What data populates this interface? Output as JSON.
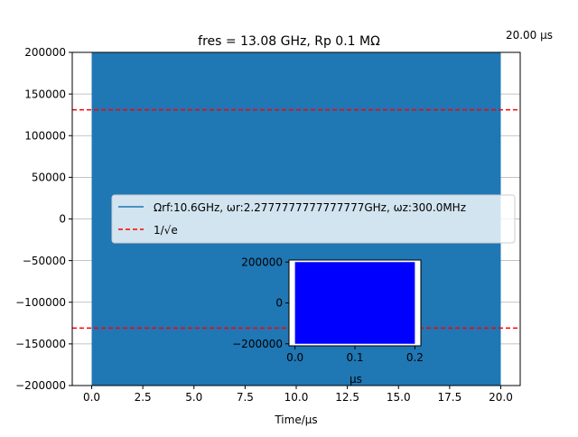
{
  "chart_data": [
    {
      "type": "line",
      "title": "fres = 13.08 GHz, Rp 0.1 MΩ",
      "corner_note": "20.00 μs",
      "xlabel": "Time/μs",
      "ylabel": "",
      "xlim": [
        -0.95,
        20.95
      ],
      "ylim": [
        -200000,
        200000
      ],
      "xticks": [
        0.0,
        2.5,
        5.0,
        7.5,
        10.0,
        12.5,
        15.0,
        17.5,
        20.0
      ],
      "xtick_labels": [
        "0.0",
        "2.5",
        "5.0",
        "7.5",
        "10.0",
        "12.5",
        "15.0",
        "17.5",
        "20.0"
      ],
      "yticks": [
        -200000,
        -150000,
        -100000,
        -50000,
        0,
        50000,
        100000,
        150000,
        200000
      ],
      "ytick_labels": [
        "−200000",
        "−150000",
        "−100000",
        "−50000",
        "0",
        "50000",
        "100000",
        "150000",
        "200000"
      ],
      "grid": "horizontal",
      "legend_position": "center-left",
      "series": [
        {
          "name": "Ωrf:10.6GHz, ωr:2.2777777777777777GHz, ωz:300.0MHz",
          "kind": "dense-oscillation",
          "x_range": [
            0.0,
            20.0
          ],
          "y_envelope": [
            -200000,
            200000
          ],
          "color": "#1f77b4"
        },
        {
          "name": "1/√e",
          "kind": "hlines-dashed",
          "values": [
            131000,
            -131000
          ],
          "color": "#ff0000"
        }
      ]
    },
    {
      "type": "line",
      "role": "inset",
      "xlabel": "μs",
      "xlim": [
        -0.01,
        0.21
      ],
      "ylim": [
        -210000,
        210000
      ],
      "xticks": [
        0.0,
        0.1,
        0.2
      ],
      "xtick_labels": [
        "0.0",
        "0.1",
        "0.2"
      ],
      "yticks": [
        -200000,
        0,
        200000
      ],
      "ytick_labels": [
        "−200000",
        "0",
        "200000"
      ],
      "series": [
        {
          "kind": "dense-oscillation",
          "x_range": [
            0.0,
            0.2
          ],
          "y_envelope": [
            -200000,
            200000
          ],
          "color": "#0000ff"
        }
      ]
    }
  ]
}
